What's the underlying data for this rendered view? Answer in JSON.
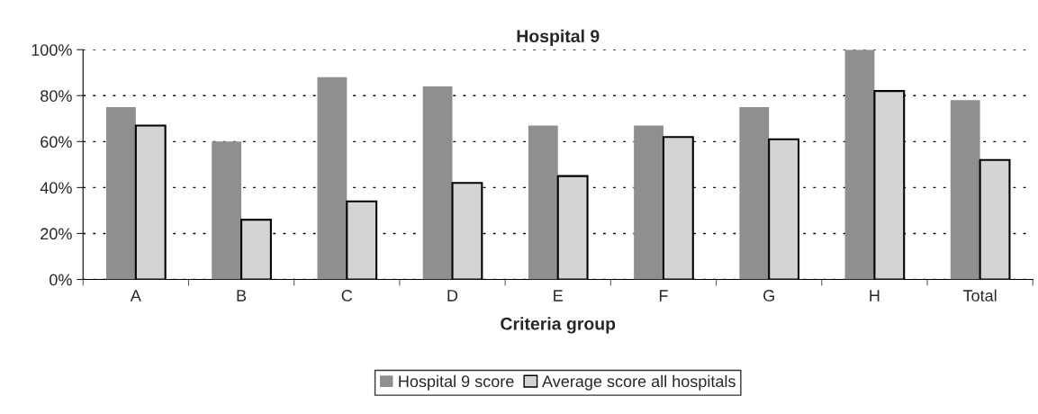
{
  "chart_data": {
    "type": "bar",
    "title": "Hospital 9",
    "xlabel": "Criteria group",
    "categories": [
      "A",
      "B",
      "C",
      "D",
      "E",
      "F",
      "G",
      "H",
      "Total"
    ],
    "series": [
      {
        "name": "Hospital 9 score",
        "color": "#8f8f8f",
        "values": [
          75,
          60,
          88,
          84,
          67,
          67,
          75,
          100,
          78
        ]
      },
      {
        "name": "Average score all hospitals",
        "color": "#d4d4d4",
        "values": [
          67,
          26,
          34,
          42,
          45,
          62,
          61,
          82,
          52
        ]
      }
    ],
    "ylim": [
      0,
      100
    ],
    "yticks": [
      {
        "value": 0,
        "label": "0%"
      },
      {
        "value": 20,
        "label": "20%"
      },
      {
        "value": 40,
        "label": "40%"
      },
      {
        "value": 60,
        "label": "60%"
      },
      {
        "value": 80,
        "label": "80%"
      },
      {
        "value": 100,
        "label": "100%"
      }
    ],
    "grid": "y",
    "legend": "bottom"
  }
}
